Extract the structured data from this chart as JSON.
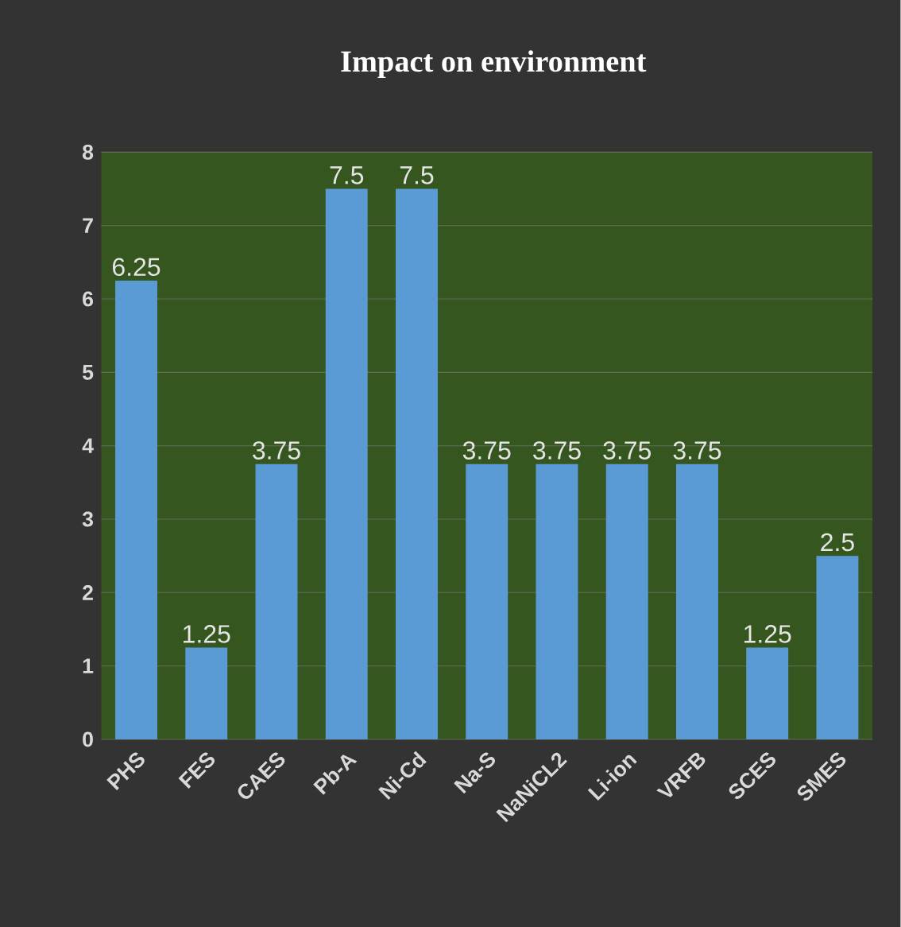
{
  "chart_data": {
    "type": "bar",
    "title": "Impact on environment",
    "categories": [
      "PHS",
      "FES",
      "CAES",
      "Pb-A",
      "Ni-Cd",
      "Na-S",
      "NaNiCL2",
      "Li-ion",
      "VRFB",
      "SCES",
      "SMES"
    ],
    "values": [
      6.25,
      1.25,
      3.75,
      7.5,
      7.5,
      3.75,
      3.75,
      3.75,
      3.75,
      1.25,
      2.5
    ],
    "color": "#5b9bd5",
    "ylim": [
      0,
      8
    ],
    "yticks": [
      0,
      1,
      2,
      3,
      4,
      5,
      6,
      7,
      8
    ],
    "grid": "y",
    "data_labels": true
  }
}
